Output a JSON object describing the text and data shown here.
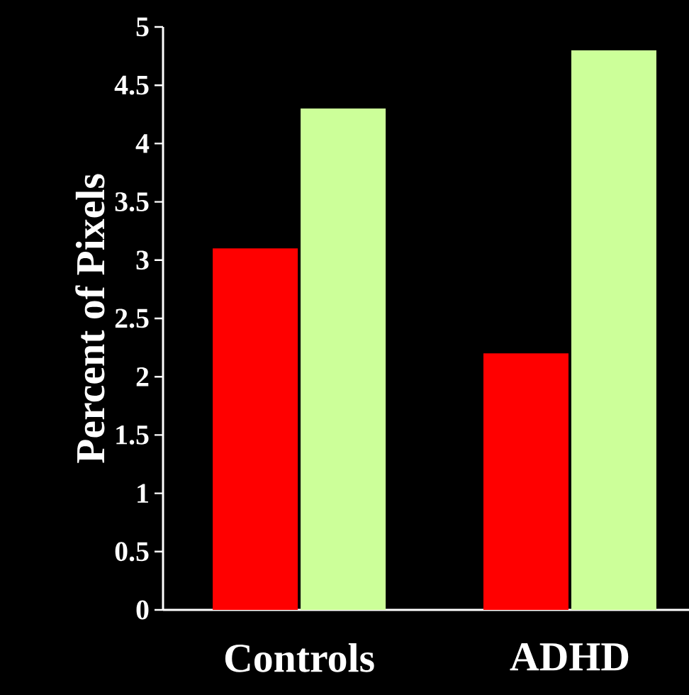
{
  "chart_data": {
    "type": "bar",
    "ylabel": "Percent of Pixels",
    "categories": [
      "Controls",
      "ADHD"
    ],
    "series": [
      {
        "color": "#ff0000",
        "values": [
          3.1,
          2.2
        ]
      },
      {
        "color": "#ccff99",
        "values": [
          4.3,
          4.8
        ]
      }
    ],
    "ylim": [
      0,
      5
    ],
    "yticks": [
      0,
      0.5,
      1,
      1.5,
      2,
      2.5,
      3,
      3.5,
      4,
      4.5,
      5
    ],
    "grid": false
  }
}
